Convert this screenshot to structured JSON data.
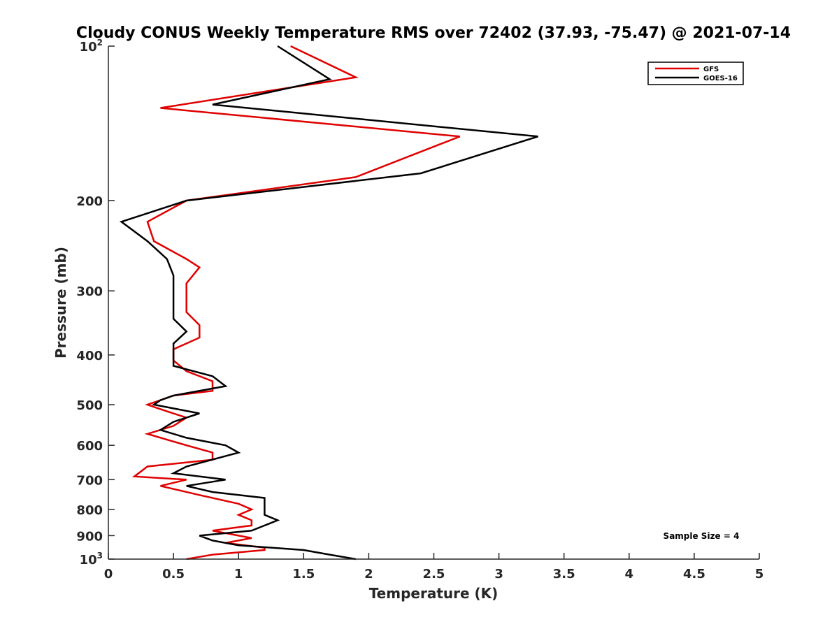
{
  "chart_data": {
    "type": "line",
    "title": "Cloudy CONUS Weekly Temperature RMS over 72402 (37.93, -75.47) @ 2021-07-14",
    "xlabel": "Temperature (K)",
    "ylabel": "Pressure (mb)",
    "xlim": [
      0,
      5
    ],
    "ylim": [
      100,
      1000
    ],
    "y_scale": "log",
    "y_reversed": true,
    "x_ticks": [
      0,
      0.5,
      1,
      1.5,
      2,
      2.5,
      3,
      3.5,
      4,
      4.5,
      5
    ],
    "x_tick_labels": [
      "0",
      "0.5",
      "1",
      "1.5",
      "2",
      "2.5",
      "3",
      "3.5",
      "4",
      "4.5",
      "5"
    ],
    "y_ticks": [
      {
        "value": 100,
        "base": "10",
        "exp": "2"
      },
      {
        "value": 200,
        "label": "200"
      },
      {
        "value": 300,
        "label": "300"
      },
      {
        "value": 400,
        "label": "400"
      },
      {
        "value": 500,
        "label": "500"
      },
      {
        "value": 600,
        "label": "600"
      },
      {
        "value": 700,
        "label": "700"
      },
      {
        "value": 800,
        "label": "800"
      },
      {
        "value": 900,
        "label": "900"
      },
      {
        "value": 1000,
        "base": "10",
        "exp": "3"
      }
    ],
    "grid": false,
    "legend_position": "top-right",
    "annotation": "Sample Size = 4",
    "series": [
      {
        "name": "GFS",
        "color": "#e00000",
        "points": [
          [
            1.4,
            100
          ],
          [
            1.9,
            115
          ],
          [
            0.4,
            132
          ],
          [
            2.7,
            150
          ],
          [
            1.9,
            180
          ],
          [
            0.6,
            200
          ],
          [
            0.3,
            220
          ],
          [
            0.35,
            240
          ],
          [
            0.6,
            260
          ],
          [
            0.7,
            270
          ],
          [
            0.6,
            290
          ],
          [
            0.6,
            310
          ],
          [
            0.6,
            330
          ],
          [
            0.7,
            350
          ],
          [
            0.7,
            370
          ],
          [
            0.5,
            390
          ],
          [
            0.5,
            410
          ],
          [
            0.6,
            430
          ],
          [
            0.8,
            450
          ],
          [
            0.8,
            460
          ],
          [
            0.8,
            470
          ],
          [
            0.5,
            480
          ],
          [
            0.4,
            490
          ],
          [
            0.3,
            500
          ],
          [
            0.4,
            510
          ],
          [
            0.6,
            530
          ],
          [
            0.5,
            550
          ],
          [
            0.3,
            570
          ],
          [
            0.6,
            600
          ],
          [
            0.8,
            620
          ],
          [
            0.8,
            640
          ],
          [
            0.3,
            660
          ],
          [
            0.2,
            690
          ],
          [
            0.6,
            700
          ],
          [
            0.4,
            720
          ],
          [
            0.7,
            750
          ],
          [
            1.0,
            780
          ],
          [
            1.1,
            800
          ],
          [
            1.0,
            820
          ],
          [
            1.1,
            840
          ],
          [
            1.1,
            860
          ],
          [
            0.8,
            880
          ],
          [
            1.0,
            900
          ],
          [
            1.1,
            910
          ],
          [
            0.9,
            930
          ],
          [
            1.2,
            950
          ],
          [
            1.2,
            960
          ],
          [
            0.8,
            980
          ],
          [
            0.7,
            990
          ],
          [
            0.6,
            1000
          ]
        ]
      },
      {
        "name": "GOES-16",
        "color": "#000000",
        "points": [
          [
            1.3,
            100
          ],
          [
            1.7,
            116
          ],
          [
            0.8,
            130
          ],
          [
            3.3,
            150
          ],
          [
            2.4,
            177
          ],
          [
            0.6,
            200
          ],
          [
            0.1,
            220
          ],
          [
            0.3,
            240
          ],
          [
            0.45,
            260
          ],
          [
            0.5,
            280
          ],
          [
            0.5,
            300
          ],
          [
            0.5,
            320
          ],
          [
            0.5,
            340
          ],
          [
            0.6,
            360
          ],
          [
            0.5,
            380
          ],
          [
            0.5,
            400
          ],
          [
            0.5,
            420
          ],
          [
            0.8,
            440
          ],
          [
            0.9,
            460
          ],
          [
            0.5,
            480
          ],
          [
            0.4,
            490
          ],
          [
            0.35,
            500
          ],
          [
            0.7,
            520
          ],
          [
            0.5,
            540
          ],
          [
            0.4,
            560
          ],
          [
            0.6,
            580
          ],
          [
            0.9,
            600
          ],
          [
            1.0,
            620
          ],
          [
            0.6,
            660
          ],
          [
            0.5,
            680
          ],
          [
            0.9,
            700
          ],
          [
            0.6,
            720
          ],
          [
            0.8,
            740
          ],
          [
            1.2,
            760
          ],
          [
            1.2,
            780
          ],
          [
            1.2,
            800
          ],
          [
            1.2,
            820
          ],
          [
            1.3,
            840
          ],
          [
            1.2,
            860
          ],
          [
            1.1,
            880
          ],
          [
            0.7,
            900
          ],
          [
            0.8,
            920
          ],
          [
            1.0,
            940
          ],
          [
            1.5,
            960
          ],
          [
            1.7,
            980
          ],
          [
            1.9,
            1000
          ]
        ]
      }
    ]
  }
}
